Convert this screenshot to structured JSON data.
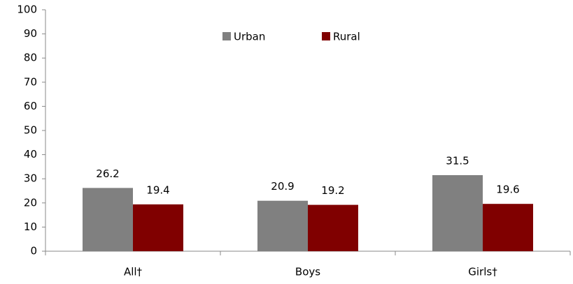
{
  "chart_data": {
    "type": "bar",
    "categories": [
      "All†",
      "Boys",
      "Girls†"
    ],
    "series": [
      {
        "name": "Urban",
        "color": "#808080",
        "values": [
          26.2,
          20.9,
          31.5
        ]
      },
      {
        "name": "Rural",
        "color": "#800000",
        "values": [
          19.4,
          19.2,
          19.6
        ]
      }
    ],
    "ylim": [
      0,
      100
    ],
    "yticks": [
      0,
      10,
      20,
      30,
      40,
      50,
      60,
      70,
      80,
      90,
      100
    ],
    "grid": false,
    "legend": "top"
  }
}
